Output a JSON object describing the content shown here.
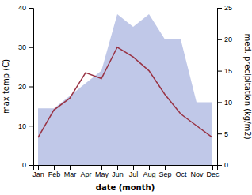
{
  "chart_data": {
    "type": "line",
    "categories": [
      "Jan",
      "Feb",
      "Mar",
      "Apr",
      "May",
      "Jun",
      "Jul",
      "Aug",
      "Sep",
      "Oct",
      "Nov",
      "Dec"
    ],
    "series": [
      {
        "type": "area",
        "axis": "y2",
        "color": "#c0c8e8",
        "values": [
          9,
          9,
          11,
          13,
          15,
          24,
          22,
          24,
          20,
          20,
          10,
          10
        ]
      },
      {
        "type": "line",
        "color": "#993344",
        "values": [
          7,
          14,
          17,
          23.5,
          22,
          30,
          27.5,
          24,
          18,
          13,
          10,
          7
        ]
      }
    ],
    "xlabel": "date (month)",
    "ylabel": "max temp (C)",
    "y2label": "med. precipitation (kg/m2)",
    "ylim": [
      0,
      40
    ],
    "yticks": [
      0,
      10,
      20,
      30,
      40
    ],
    "y2lim": [
      0,
      25
    ],
    "y2ticks": [
      0,
      5,
      10,
      15,
      20,
      25
    ],
    "grid": false
  }
}
